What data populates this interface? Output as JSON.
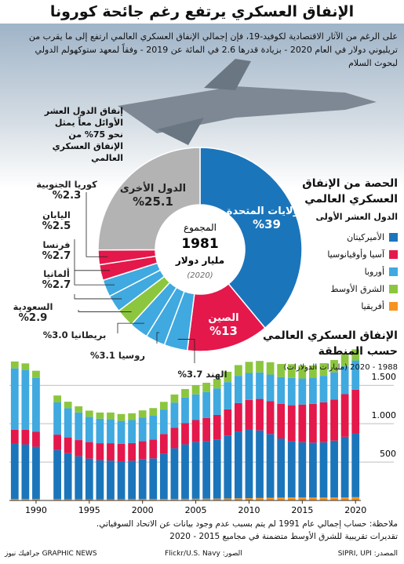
{
  "header": {
    "title": "الإنفاق العسكري يرتفع رغم جائحة كورونا",
    "intro": "على الرغم من الآثار الاقتصادية لكوفيد-19، فإن إجمالي الإنفاق العسكري العالمي ارتفع إلى ما يقرب من تريليوني دولار في العام 2020 - بزيادة قدرها 2.6 في المائة عن 2019 - وفقاً لمعهد ستوكهولم الدولي لبحوث السلام"
  },
  "chart_data": [
    {
      "type": "pie",
      "title": "الحصة من الإنفاق العسكري العالمي",
      "subtitle": "الدول العشر الأولى",
      "annotation": "إنفاق الدول العشر الأوائل معاً يمثل نحو 75% من الإنفاق العسكري العالمي",
      "center_label": "المجموع",
      "total": 1981,
      "total_unit": "مليار دولار",
      "total_year": "(2020)",
      "categories": [
        "الولايات المتحدة",
        "الصين",
        "الهند",
        "روسيا",
        "بريطانيا",
        "السعودية",
        "ألمانيا",
        "فرنسا",
        "اليابان",
        "كوريا الجنوبية",
        "الدول الأخرى"
      ],
      "values": [
        39,
        13,
        3.7,
        3.1,
        3.0,
        2.9,
        2.7,
        2.7,
        2.5,
        2.3,
        25.1
      ],
      "value_labels": [
        "%39",
        "%13",
        "%3.7",
        "%3.1",
        "%3.0",
        "%2.9",
        "%2.7",
        "%2.7",
        "%2.5",
        "%2.3",
        "%25.1"
      ],
      "colors": [
        "#1b75bb",
        "#e4184b",
        "#3fa9e0",
        "#3fa9e0",
        "#3fa9e0",
        "#8cc63f",
        "#3fa9e0",
        "#3fa9e0",
        "#e4184b",
        "#e4184b",
        "#b3b3b3"
      ]
    },
    {
      "type": "bar",
      "title": "الإنفاق العسكري العالمي حسب المنطقة",
      "subtitle": "1988 - 2020 (مليارات الدولارات)",
      "stacked": true,
      "x": [
        1988,
        1989,
        1990,
        1991,
        1992,
        1993,
        1994,
        1995,
        1996,
        1997,
        1998,
        1999,
        2000,
        2001,
        2002,
        2003,
        2004,
        2005,
        2006,
        2007,
        2008,
        2009,
        2010,
        2011,
        2012,
        2013,
        2014,
        2015,
        2016,
        2017,
        2018,
        2019,
        2020
      ],
      "xlim": [
        1987.5,
        2020.5
      ],
      "xticks": [
        1990,
        1995,
        2000,
        2005,
        2010,
        2015,
        2020
      ],
      "ylim": [
        0,
        1900
      ],
      "yticks": [
        500,
        {
          "value": 1000,
          "label": "1.000"
        },
        {
          "value": 1500,
          "label": "1.500"
        }
      ],
      "grid": true,
      "series": [
        {
          "name": "أفريقيا",
          "color": "#f7941d",
          "values": [
            20,
            20,
            19,
            null,
            17,
            16,
            16,
            15,
            15,
            15,
            16,
            17,
            18,
            18,
            19,
            20,
            21,
            22,
            23,
            24,
            26,
            28,
            30,
            32,
            35,
            37,
            40,
            39,
            38,
            38,
            39,
            39,
            43
          ]
        },
        {
          "name": "الأميركيتان",
          "color": "#1b75bb",
          "values": [
            720,
            710,
            680,
            null,
            640,
            600,
            560,
            530,
            510,
            505,
            495,
            500,
            520,
            530,
            590,
            660,
            710,
            740,
            750,
            770,
            820,
            870,
            890,
            880,
            830,
            770,
            730,
            720,
            715,
            720,
            740,
            790,
            830
          ]
        },
        {
          "name": "آسيا وأوقيانوسيا",
          "color": "#e4184b",
          "values": [
            180,
            190,
            195,
            null,
            200,
            205,
            210,
            215,
            220,
            225,
            225,
            230,
            235,
            245,
            255,
            265,
            275,
            285,
            300,
            320,
            340,
            370,
            390,
            410,
            430,
            450,
            470,
            490,
            505,
            520,
            535,
            555,
            570
          ]
        },
        {
          "name": "أوروبا",
          "color": "#3fa9e0",
          "values": [
            800,
            780,
            700,
            null,
            420,
            380,
            360,
            330,
            320,
            315,
            300,
            300,
            305,
            310,
            320,
            330,
            335,
            335,
            340,
            345,
            355,
            355,
            350,
            345,
            345,
            350,
            355,
            340,
            340,
            345,
            355,
            365,
            380
          ]
        },
        {
          "name": "الشرق الأوسط",
          "color": "#8cc63f",
          "values": [
            90,
            85,
            95,
            null,
            90,
            85,
            80,
            80,
            80,
            85,
            90,
            88,
            95,
            100,
            100,
            105,
            110,
            115,
            120,
            125,
            135,
            140,
            145,
            150,
            160,
            170,
            180,
            170,
            160,
            165,
            160,
            155,
            145
          ]
        }
      ]
    }
  ],
  "notes": [
    "ملاحظة: حساب إجمالي عام 1991 لم يتم بسبب عدم وجود بيانات عن الاتحاد السوفياتي.",
    "تقديرات تقريبية للشرق الأوسط متضمنة في مجاميع 2015 - 2020"
  ],
  "footer": {
    "source": "المصدر: SIPRI, UPI",
    "photo": "الصور: Flickr/U.S. Navy",
    "brand": "GRAPHIC NEWS جرافيك نيوز"
  }
}
